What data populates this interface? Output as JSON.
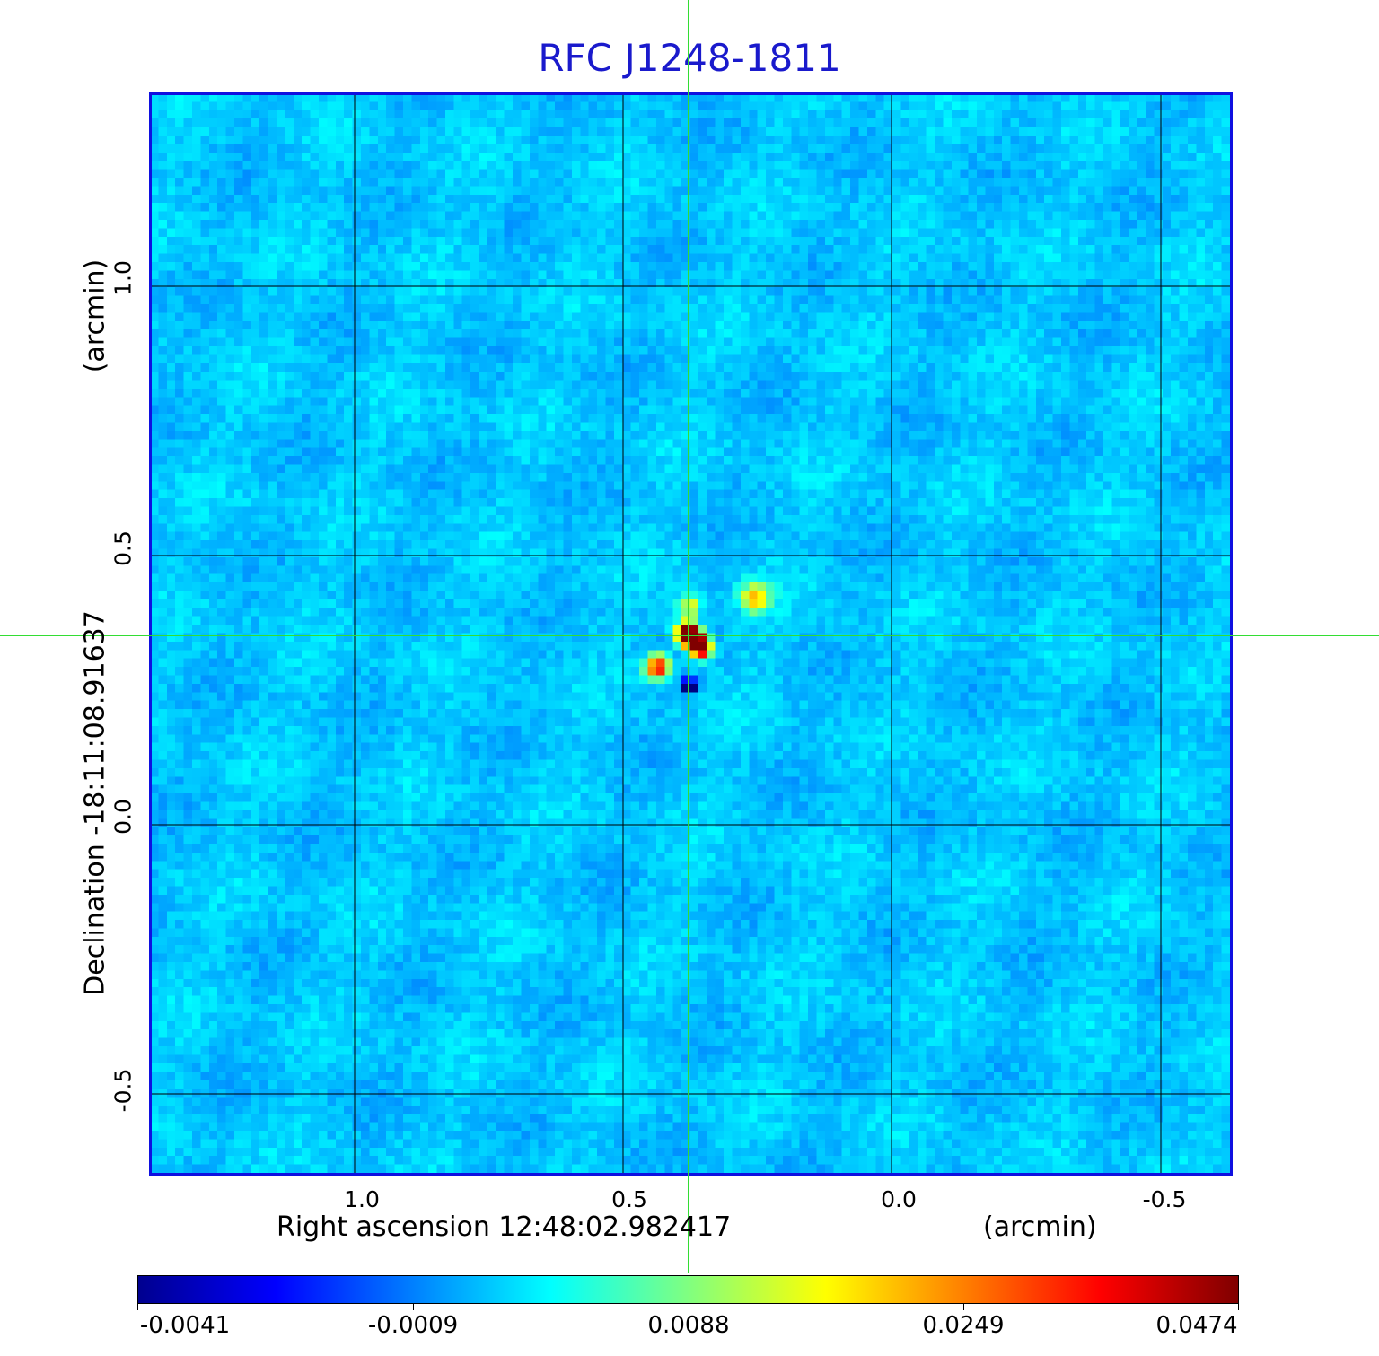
{
  "title": "RFC J1248-1811",
  "axes": {
    "x_label": "Right ascension  12:48:02.982417",
    "x_unit": "(arcmin)",
    "y_label": "Declination  -18:11:08.91637",
    "y_unit": "(arcmin)",
    "x_ticks": [
      "1.0",
      "0.5",
      "0.0",
      "-0.5"
    ],
    "y_ticks": [
      "1.0",
      "0.5",
      "0.0",
      "-0.5"
    ]
  },
  "colorbar": {
    "labels": [
      "-0.0041",
      "-0.0009",
      "0.0088",
      "0.0249",
      "0.0474"
    ]
  },
  "colors": {
    "background_field": "#1aa0f0",
    "title_color": "#1a1acc",
    "frame_color": "#1010e0",
    "crosshair_color": "#33dd33"
  }
}
